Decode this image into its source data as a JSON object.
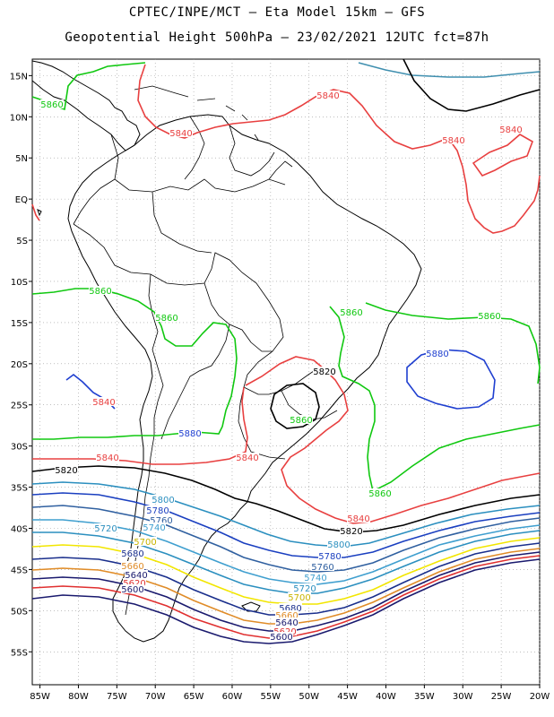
{
  "header": {
    "line1": "CPTEC/INPE/MCT –  Eta Model 15km – GFS",
    "line2": "Geopotential Height 500hPa – 23/02/2021 12UTC fct=87h"
  },
  "axes": {
    "lat_labels": [
      "15N",
      "10N",
      "5N",
      "EQ",
      "5S",
      "10S",
      "15S",
      "20S",
      "25S",
      "30S",
      "35S",
      "40S",
      "45S",
      "50S",
      "55S"
    ],
    "lon_labels": [
      "85W",
      "80W",
      "75W",
      "70W",
      "65W",
      "60W",
      "55W",
      "50W",
      "45W",
      "40W",
      "35W",
      "30W",
      "25W",
      "20W"
    ]
  },
  "chart_data": {
    "type": "contour",
    "variable": "Geopotential Height 500hPa",
    "lon_range": [
      -86,
      -20
    ],
    "lat_range": [
      17,
      -59
    ],
    "contour_levels": [
      5600,
      5620,
      5640,
      5660,
      5680,
      5700,
      5720,
      5740,
      5760,
      5780,
      5800,
      5820,
      5840,
      5860
    ],
    "level_colors": {
      "5600": "#1a1a6e",
      "5620": "#e03030",
      "5640": "#1a1a6e",
      "5660": "#e08c28",
      "5680": "#1a2f8c",
      "5700": "#f2e600",
      "5720": "#2b8fbf",
      "5740": "#3f9fcf",
      "5760": "#3060a0",
      "5780": "#1a3fc0",
      "5800": "#2b8fbf",
      "5820": "#000000",
      "5840": "#e84040",
      "5860": "#10c810"
    },
    "contour_labels": [
      {
        "text": "5860",
        "color": "#10c810"
      },
      {
        "text": "5840",
        "color": "#e84040"
      },
      {
        "text": "5840",
        "color": "#e84040"
      },
      {
        "text": "5840",
        "color": "#e84040"
      },
      {
        "text": "5840",
        "color": "#e84040"
      },
      {
        "text": "5860",
        "color": "#10c810"
      },
      {
        "text": "5860",
        "color": "#10c810"
      },
      {
        "text": "5860",
        "color": "#10c810"
      },
      {
        "text": "5860",
        "color": "#10c810"
      },
      {
        "text": "5880",
        "color": "#1f3fd0"
      },
      {
        "text": "5880",
        "color": "#1f3fd0"
      },
      {
        "text": "5840",
        "color": "#e84040"
      },
      {
        "text": "5820",
        "color": "#000000"
      },
      {
        "text": "5860",
        "color": "#10c810"
      },
      {
        "text": "5840",
        "color": "#e84040"
      },
      {
        "text": "5840",
        "color": "#e84040"
      },
      {
        "text": "5820",
        "color": "#000000"
      },
      {
        "text": "5860",
        "color": "#10c810"
      },
      {
        "text": "5840",
        "color": "#e84040"
      },
      {
        "text": "5820",
        "color": "#000000"
      },
      {
        "text": "5800",
        "color": "#2b8fbf"
      },
      {
        "text": "5780",
        "color": "#1a3fc0"
      },
      {
        "text": "5760",
        "color": "#3060a0"
      },
      {
        "text": "5740",
        "color": "#3f9fcf"
      },
      {
        "text": "5720",
        "color": "#2b8fbf"
      },
      {
        "text": "5700",
        "color": "#c8b400"
      },
      {
        "text": "5680",
        "color": "#1a2f8c"
      },
      {
        "text": "5660",
        "color": "#e08c28"
      },
      {
        "text": "5640",
        "color": "#1a1a6e"
      },
      {
        "text": "5620",
        "color": "#e03030"
      },
      {
        "text": "5600",
        "color": "#1a1a6e"
      },
      {
        "text": "5800",
        "color": "#2b8fbf"
      },
      {
        "text": "5780",
        "color": "#1a3fc0"
      },
      {
        "text": "5760",
        "color": "#3060a0"
      },
      {
        "text": "5740",
        "color": "#3f9fcf"
      },
      {
        "text": "5720",
        "color": "#2b8fbf"
      },
      {
        "text": "5700",
        "color": "#c8b400"
      },
      {
        "text": "5680",
        "color": "#1a2f8c"
      },
      {
        "text": "5660",
        "color": "#e08c28"
      },
      {
        "text": "5640",
        "color": "#1a1a6e"
      },
      {
        "text": "5620",
        "color": "#e03030"
      },
      {
        "text": "5600",
        "color": "#1a1a6e"
      }
    ]
  }
}
